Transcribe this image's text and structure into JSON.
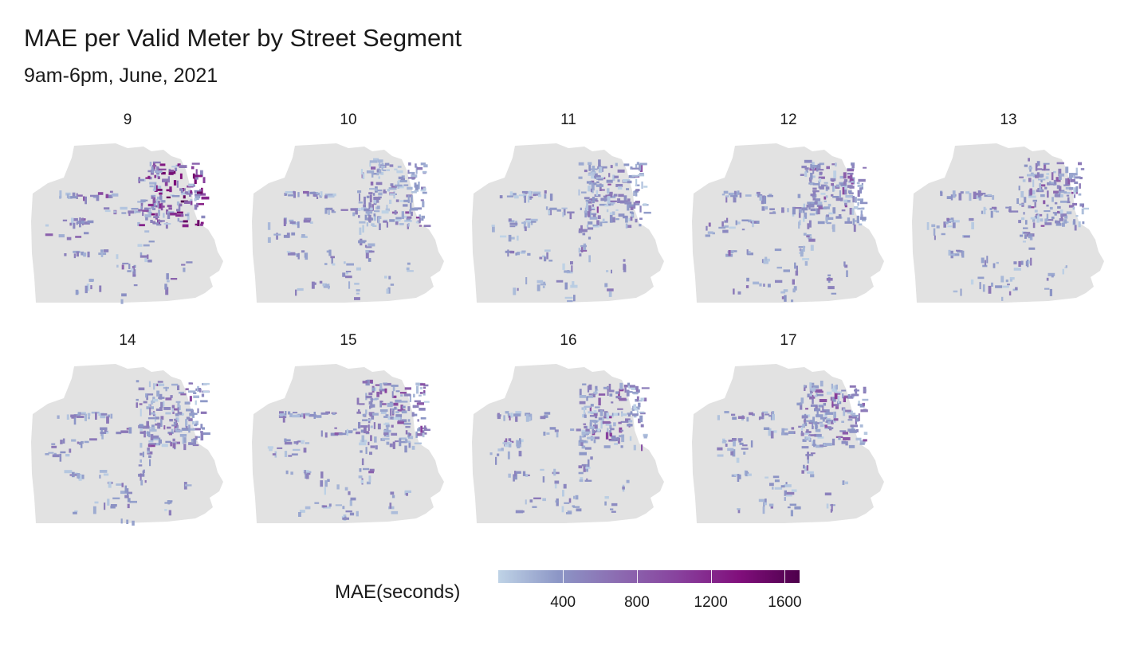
{
  "title": "MAE per Valid Meter by Street Segment",
  "subtitle": "9am-6pm, June, 2021",
  "panels": [
    {
      "label": "9",
      "intensity": 0.85
    },
    {
      "label": "10",
      "intensity": 0.35
    },
    {
      "label": "11",
      "intensity": 0.3
    },
    {
      "label": "12",
      "intensity": 0.35
    },
    {
      "label": "13",
      "intensity": 0.38
    },
    {
      "label": "14",
      "intensity": 0.35
    },
    {
      "label": "15",
      "intensity": 0.4
    },
    {
      "label": "16",
      "intensity": 0.45
    },
    {
      "label": "17",
      "intensity": 0.38
    }
  ],
  "legend": {
    "title": "MAE(seconds)",
    "labels": [
      "400",
      "800",
      "1200",
      "1600"
    ],
    "colors": [
      "#bfd3e6",
      "#8c96c6",
      "#8c6bb1",
      "#88419d",
      "#810f7c",
      "#4d004b"
    ],
    "range": [
      50,
      1680
    ]
  },
  "colors": {
    "land": "#e2e2e2"
  }
}
